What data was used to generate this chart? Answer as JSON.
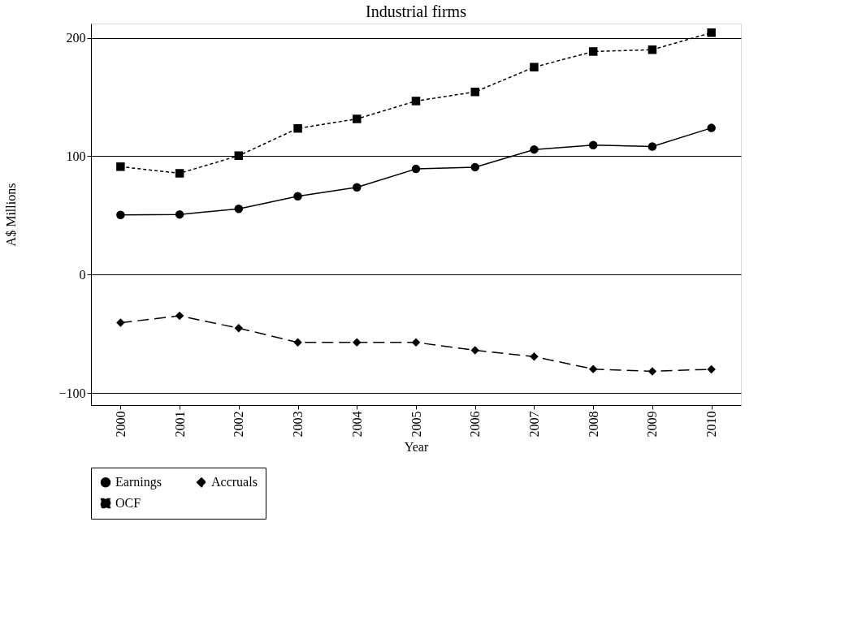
{
  "chart_data": {
    "type": "line",
    "title": "Industrial firms",
    "xlabel": "Year",
    "ylabel": "A$ Millions",
    "categories": [
      "2000",
      "2001",
      "2002",
      "2003",
      "2004",
      "2005",
      "2006",
      "2007",
      "2008",
      "2009",
      "2010"
    ],
    "series": [
      {
        "name": "Earnings",
        "color": "#000000",
        "marker": "circle",
        "line_style": "solid",
        "values": [
          50.5,
          50.9,
          55.6,
          66.2,
          73.8,
          89.3,
          90.8,
          105.7,
          109.4,
          108.2,
          123.9
        ]
      },
      {
        "name": "Accruals",
        "color": "#000000",
        "marker": "diamond",
        "line_style": "dashed",
        "values": [
          -40.5,
          -34.7,
          -45.1,
          -57.1,
          -57.1,
          -57.1,
          -63.7,
          -69.1,
          -79.6,
          -81.5,
          -79.8
        ]
      },
      {
        "name": "OCF",
        "color": "#000000",
        "marker": "square",
        "line_style": "dotted",
        "values": [
          91.2,
          85.6,
          100.5,
          123.5,
          131.5,
          146.6,
          154.3,
          175.2,
          188.4,
          189.9,
          204.3
        ]
      }
    ],
    "ylim": [
      -110,
      212
    ],
    "yticks": [
      -100,
      0,
      100,
      200
    ],
    "grid": "y",
    "legend": "bottom"
  }
}
